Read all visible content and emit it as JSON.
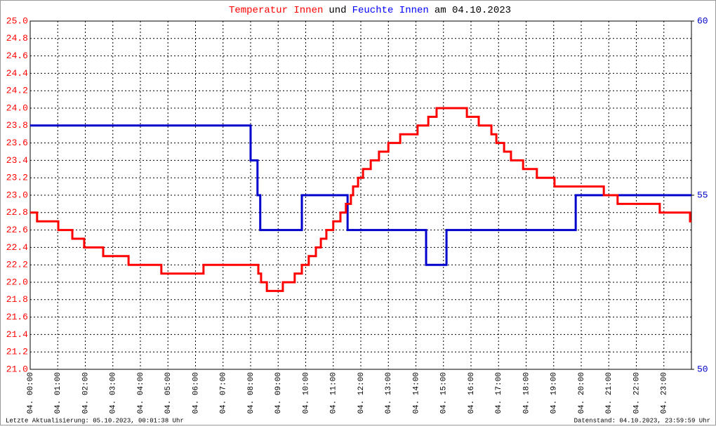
{
  "chart_data": {
    "type": "line",
    "title": [
      "Temperatur Innen",
      "und",
      "Feuchte Innen",
      "am 04.10.2023"
    ],
    "title_colors": [
      "#ff0000",
      "#000000",
      "#0000ff",
      "#000000"
    ],
    "footer_left": "Letzte Aktualisierung: 05.10.2023, 00:01:38 Uhr",
    "footer_right": "Datenstand: 04.10.2023, 23:59:59 Uhr",
    "xlim": [
      0,
      24
    ],
    "xticks": [
      {
        "value": 0,
        "label": "04. 00:00"
      },
      {
        "value": 1,
        "label": "04. 01:00"
      },
      {
        "value": 2,
        "label": "04. 02:00"
      },
      {
        "value": 3,
        "label": "04. 03:00"
      },
      {
        "value": 4,
        "label": "04. 04:00"
      },
      {
        "value": 5,
        "label": "04. 05:00"
      },
      {
        "value": 6,
        "label": "04. 06:00"
      },
      {
        "value": 7,
        "label": "04. 07:00"
      },
      {
        "value": 8,
        "label": "04. 08:00"
      },
      {
        "value": 9,
        "label": "04. 09:00"
      },
      {
        "value": 10,
        "label": "04. 10:00"
      },
      {
        "value": 11,
        "label": "04. 11:00"
      },
      {
        "value": 12,
        "label": "04. 12:00"
      },
      {
        "value": 13,
        "label": "04. 13:00"
      },
      {
        "value": 14,
        "label": "04. 14:00"
      },
      {
        "value": 15,
        "label": "04. 15:00"
      },
      {
        "value": 16,
        "label": "04. 16:00"
      },
      {
        "value": 17,
        "label": "04. 17:00"
      },
      {
        "value": 18,
        "label": "04. 18:00"
      },
      {
        "value": 19,
        "label": "04. 19:00"
      },
      {
        "value": 20,
        "label": "04. 20:00"
      },
      {
        "value": 21,
        "label": "04. 21:00"
      },
      {
        "value": 22,
        "label": "04. 22:00"
      },
      {
        "value": 23,
        "label": "04. 23:00"
      }
    ],
    "ylim": [
      21,
      25
    ],
    "yticks": [
      {
        "value": 21,
        "label": "21.0"
      },
      21.2,
      21.4,
      21.6,
      21.8,
      {
        "value": 22,
        "label": "22.0"
      },
      22.2,
      22.4,
      22.6,
      22.8,
      {
        "value": 23,
        "label": "23.0"
      },
      23.2,
      23.4,
      23.6,
      23.8,
      {
        "value": 24,
        "label": "24.0"
      },
      24.2,
      24.4,
      24.6,
      24.8,
      {
        "value": 25,
        "label": "25.0"
      }
    ],
    "y2lim": [
      50,
      60
    ],
    "y2ticks": [
      50,
      55,
      60
    ],
    "grid": true,
    "series": [
      {
        "color": "#ff0000",
        "x": [
          0,
          0.25,
          0.25,
          1.02,
          1.02,
          1.53,
          1.53,
          1.96,
          1.96,
          2.65,
          2.65,
          3.57,
          3.57,
          4.76,
          4.76,
          6.29,
          6.29,
          8.28,
          8.28,
          8.38,
          8.38,
          8.59,
          8.59,
          9.17,
          9.17,
          9.6,
          9.6,
          9.86,
          9.86,
          10.11,
          10.11,
          10.37,
          10.37,
          10.55,
          10.55,
          10.75,
          10.75,
          11.0,
          11.0,
          11.26,
          11.26,
          11.46,
          11.46,
          11.64,
          11.64,
          11.72,
          11.72,
          11.9,
          11.9,
          12.08,
          12.08,
          12.36,
          12.36,
          12.66,
          12.66,
          13.0,
          13.0,
          13.43,
          13.43,
          14.06,
          14.06,
          14.45,
          14.45,
          14.75,
          14.75,
          15.85,
          15.85,
          16.28,
          16.28,
          16.74,
          16.74,
          16.92,
          16.92,
          17.2,
          17.2,
          17.45,
          17.45,
          17.89,
          17.89,
          18.39,
          18.39,
          19.03,
          19.03,
          20.82,
          20.82,
          21.32,
          21.32,
          22.85,
          22.85,
          23.95,
          23.95,
          24
        ],
        "values": [
          22.8,
          22.8,
          22.7,
          22.7,
          22.6,
          22.6,
          22.5,
          22.5,
          22.4,
          22.4,
          22.3,
          22.3,
          22.2,
          22.2,
          22.1,
          22.1,
          22.2,
          22.2,
          22.1,
          22.1,
          22.0,
          22.0,
          21.9,
          21.9,
          22.0,
          22.0,
          22.1,
          22.1,
          22.2,
          22.2,
          22.3,
          22.3,
          22.4,
          22.4,
          22.5,
          22.5,
          22.6,
          22.6,
          22.7,
          22.7,
          22.8,
          22.8,
          22.9,
          22.9,
          23.0,
          23.0,
          23.1,
          23.1,
          23.2,
          23.2,
          23.3,
          23.3,
          23.4,
          23.4,
          23.5,
          23.5,
          23.6,
          23.6,
          23.7,
          23.7,
          23.8,
          23.8,
          23.9,
          23.9,
          24.0,
          24.0,
          23.9,
          23.9,
          23.8,
          23.8,
          23.7,
          23.7,
          23.6,
          23.6,
          23.5,
          23.5,
          23.4,
          23.4,
          23.3,
          23.3,
          23.2,
          23.2,
          23.1,
          23.1,
          23.0,
          23.0,
          22.9,
          22.9,
          22.8,
          22.8,
          22.7,
          22.7
        ]
      },
      {
        "color": "#0000cc",
        "axis": "y2",
        "x": [
          0,
          8.0,
          8.0,
          8.25,
          8.25,
          8.35,
          8.35,
          9.86,
          9.86,
          11.52,
          11.52,
          14.37,
          14.37,
          15.11,
          15.11,
          19.8,
          19.8,
          24
        ],
        "values": [
          57,
          57,
          56,
          56,
          55,
          55,
          54,
          54,
          55,
          55,
          54,
          54,
          53,
          53,
          54,
          54,
          55,
          55
        ]
      }
    ]
  }
}
